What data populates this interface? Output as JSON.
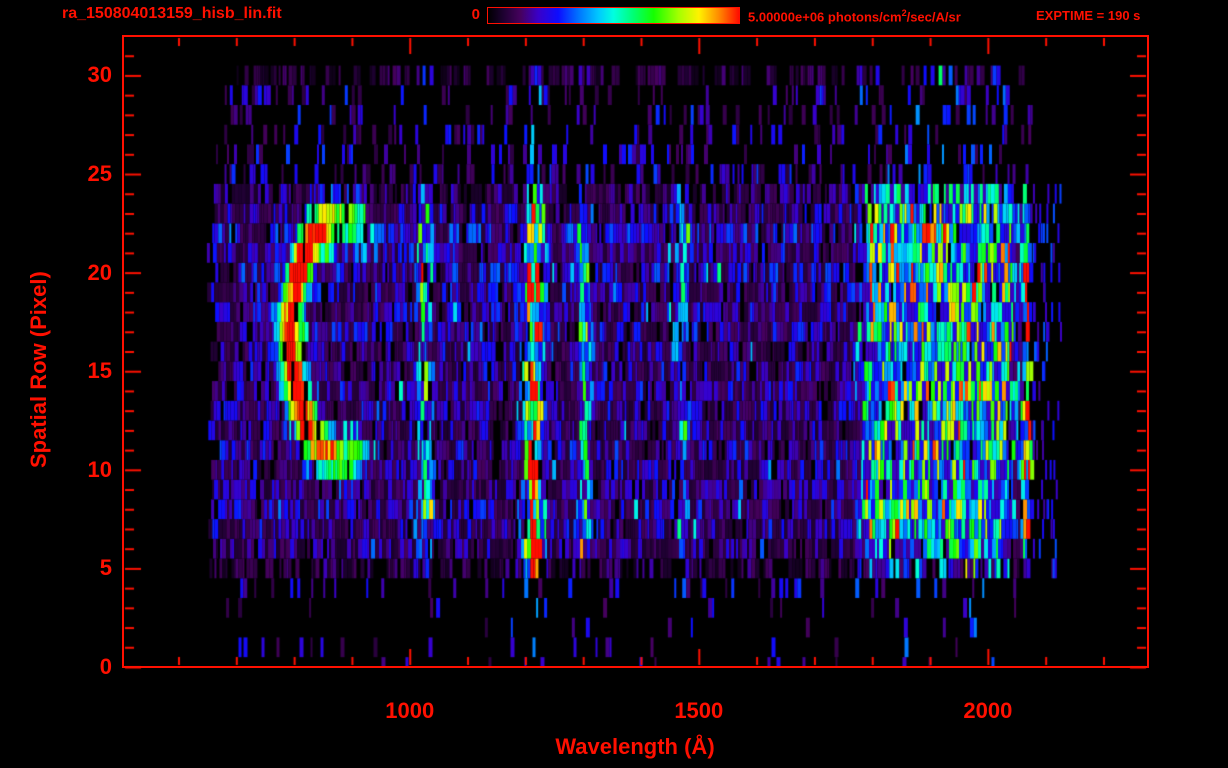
{
  "header": {
    "title": "ra_150804013159_hisb_lin.fit",
    "colorbar_min_label": "0",
    "colorbar_max_value": "5.00000e+06",
    "colorbar_max_units_pre": " photons/cm",
    "colorbar_max_units_sup": "2",
    "colorbar_max_units_post": "/sec/A/sr",
    "exptime_label": "EXPTIME = 190 s"
  },
  "colors": {
    "background": "#000000",
    "text_red": "#ff1000",
    "frame_red": "#ff1000",
    "colormap_stops": [
      {
        "t": 0.0,
        "c": "#000000"
      },
      {
        "t": 0.06,
        "c": "#1d0130"
      },
      {
        "t": 0.13,
        "c": "#46015e"
      },
      {
        "t": 0.2,
        "c": "#3a00c8"
      },
      {
        "t": 0.28,
        "c": "#0d0dff"
      },
      {
        "t": 0.36,
        "c": "#0073ff"
      },
      {
        "t": 0.44,
        "c": "#00c8ff"
      },
      {
        "t": 0.5,
        "c": "#00ffe0"
      },
      {
        "t": 0.58,
        "c": "#00ff72"
      },
      {
        "t": 0.66,
        "c": "#15ff00"
      },
      {
        "t": 0.76,
        "c": "#a5ff00"
      },
      {
        "t": 0.84,
        "c": "#fff200"
      },
      {
        "t": 0.92,
        "c": "#ff8a00"
      },
      {
        "t": 1.0,
        "c": "#ff0d00"
      }
    ]
  },
  "chart_data": {
    "type": "heatmap",
    "title": "ra_150804013159_hisb_lin.fit",
    "xlabel": "Wavelength (Å)",
    "ylabel": "Spatial Row (Pixel)",
    "xlim": [
      504,
      2277
    ],
    "ylim": [
      0,
      32
    ],
    "x_major_ticks": [
      1000,
      1500,
      2000
    ],
    "x_minor_tick_step": 100,
    "y_major_ticks": [
      0,
      5,
      10,
      15,
      20,
      25,
      30
    ],
    "y_minor_tick_step": 1,
    "grid": false,
    "colorbar": {
      "min": 0,
      "max": 5000000,
      "min_label": "0",
      "max_label": "5.00000e+06",
      "units": "photons/cm^2/sec/A/sr",
      "position": "top-center"
    },
    "exptime_seconds": 190,
    "data_extent": {
      "wl_min": 660,
      "wl_max": 2072,
      "row_min": 0,
      "row_max": 30.5
    },
    "row_brightness_profile": [
      0.02,
      0.04,
      0.05,
      0.06,
      0.12,
      0.55,
      0.78,
      0.95,
      1.0,
      0.82,
      0.9,
      1.02,
      0.85,
      0.92,
      1.0,
      0.95,
      0.9,
      1.0,
      0.95,
      1.0,
      1.08,
      0.98,
      1.1,
      0.92,
      0.7,
      0.3,
      0.22,
      0.2,
      0.18,
      0.16,
      0.45
    ],
    "spectrum": {
      "continuum_level": 0.2,
      "emission_lines": [
        {
          "wavelength": 1026,
          "width": 9,
          "amplitude": 0.34
        },
        {
          "wavelength": 1216,
          "width": 10,
          "amplitude": 1.0
        },
        {
          "wavelength": 1302,
          "width": 8,
          "amplitude": 0.33
        },
        {
          "wavelength": 1468,
          "width": 8,
          "amplitude": 0.24
        },
        {
          "wavelength": 2068,
          "width": 5,
          "amplitude": 0.85
        }
      ],
      "continuum_band": {
        "wl_from": 1765,
        "wl_to": 2062,
        "amplitude": 0.4
      },
      "hot_spots": [
        {
          "wavelength": 1213,
          "row": 5.5,
          "amplitude": 0.5,
          "wl_sigma": 10,
          "row_sigma": 1.1
        }
      ]
    },
    "arc_feature": {
      "shape": "C-shaped crescent, opening right",
      "center_wavelength": 890,
      "center_row": 16.7,
      "radius_wavelength": 96,
      "radius_rows": 6.1,
      "thickness": 0.2,
      "amplitude": 0.95
    },
    "noise_seed": 20150804
  }
}
